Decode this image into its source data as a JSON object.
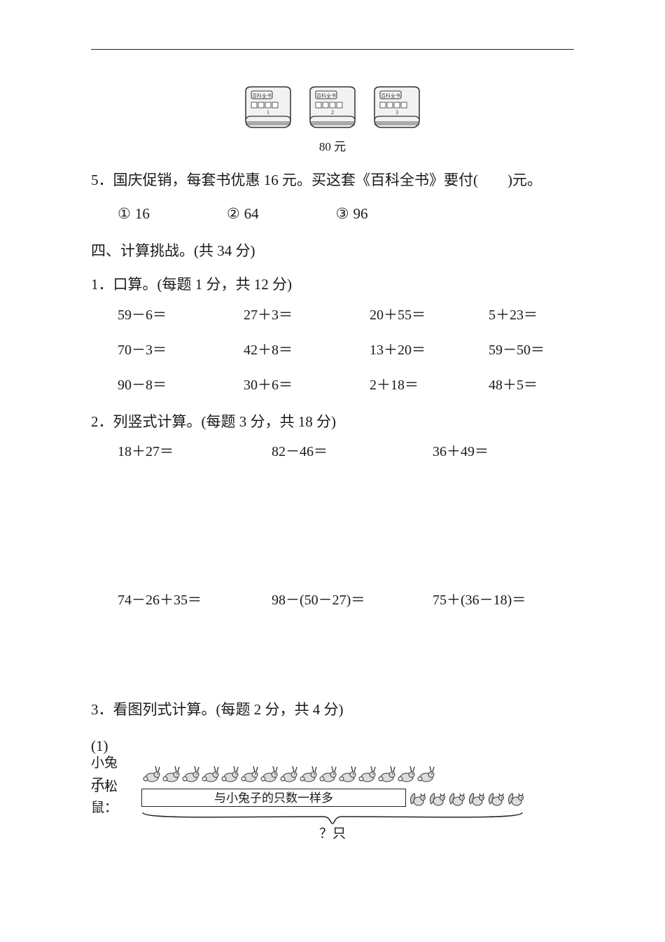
{
  "colors": {
    "text": "#1a1a1a",
    "line": "#222222",
    "background": "#ffffff",
    "book_fill": "#e8e8e8",
    "book_stroke": "#333333"
  },
  "books": {
    "count": 3,
    "title_on_book": "百科全书",
    "price_label": "80 元"
  },
  "q5": {
    "text": "5．国庆促销，每套书优惠 16 元。买这套《百科全书》要付(　　)元。",
    "choices": [
      {
        "num": "①",
        "val": "16"
      },
      {
        "num": "②",
        "val": "64"
      },
      {
        "num": "③",
        "val": "96"
      }
    ]
  },
  "section4": {
    "title": "四、计算挑战。(共 34 分)",
    "q1": {
      "title": "1．口算。(每题 1 分，共 12 分)",
      "items": [
        "59－6＝",
        "27＋3＝",
        "20＋55＝",
        "5＋23＝",
        "70－3＝",
        "42＋8＝",
        "13＋20＝",
        "59－50＝",
        "90－8＝",
        "30＋6＝",
        "2＋18＝",
        "48＋5＝"
      ]
    },
    "q2": {
      "title": "2．列竖式计算。(每题 3 分，共 18 分)",
      "row1": [
        "18＋27＝",
        "82－46＝",
        "36＋49＝"
      ],
      "row2": [
        "74－26＋35＝",
        "98－(50－27)＝",
        "75＋(36－18)＝"
      ]
    },
    "q3": {
      "title": "3．看图列式计算。(每题 2 分，共 4 分)",
      "part1_num": "(1)",
      "rabbit_label": "小兔子：",
      "rabbit_count": 15,
      "squirrel_label": "小松鼠：",
      "squirrel_box_text": "与小兔子的只数一样多",
      "squirrel_extra_count": 6,
      "brace_label": "？只"
    }
  }
}
